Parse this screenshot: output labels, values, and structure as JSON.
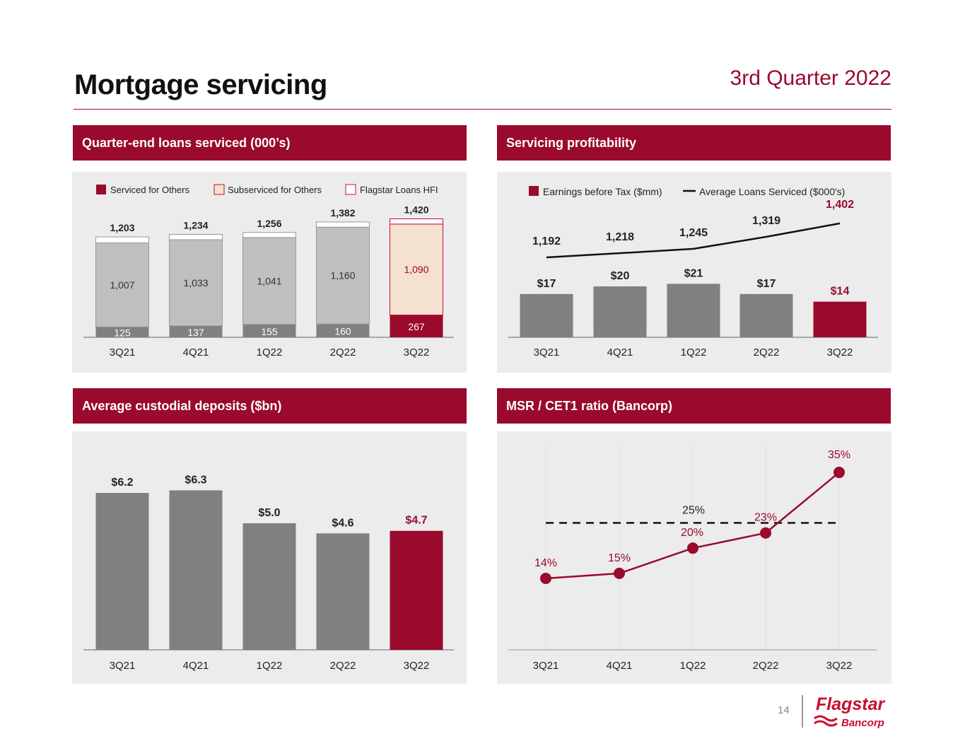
{
  "header": {
    "title": "Mortgage servicing",
    "period": "3rd Quarter 2022"
  },
  "footer": {
    "page": "14",
    "logo_text": "Flagstar Bancorp"
  },
  "colors": {
    "accent": "#9a0a2c",
    "dark_gray": "#808080",
    "light_gray": "#bfbfbf",
    "peach": "#f5e1cf"
  },
  "chart_data": [
    {
      "type": "bar",
      "stacked": true,
      "title": "Quarter-end loans serviced (000’s)",
      "categories": [
        "3Q21",
        "4Q21",
        "1Q22",
        "2Q22",
        "3Q22"
      ],
      "legend": [
        "Serviced for Others",
        "Subserviced for Others",
        "Flagstar Loans HFI"
      ],
      "legend_placement": "top",
      "series": [
        {
          "name": "Serviced for Others",
          "values": [
            125,
            137,
            155,
            160,
            267
          ]
        },
        {
          "name": "Subserviced for Others",
          "values": [
            1007,
            1033,
            1041,
            1160,
            1090
          ]
        },
        {
          "name": "Flagstar Loans HFI",
          "values": [
            71,
            64,
            60,
            62,
            63
          ]
        }
      ],
      "totals": [
        1203,
        1234,
        1256,
        1382,
        1420
      ],
      "total_labels": [
        "1,203",
        "1,234",
        "1,256",
        "1,382",
        "1,420"
      ],
      "seg_labels": [
        [
          "125",
          "137",
          "155",
          "160",
          "267"
        ],
        [
          "1,007",
          "1,033",
          "1,041",
          "1,160",
          "1,090"
        ]
      ]
    },
    {
      "type": "bar+line",
      "title": "Servicing profitability",
      "categories": [
        "3Q21",
        "4Q21",
        "1Q22",
        "2Q22",
        "3Q22"
      ],
      "legend_placement": "top",
      "series": [
        {
          "name": "Earnings before Tax ($mm)",
          "type": "bar",
          "values": [
            17,
            20,
            21,
            17,
            14
          ],
          "labels": [
            "$17",
            "$20",
            "$21",
            "$17",
            "$14"
          ]
        },
        {
          "name": "Average Loans Serviced ($000's)",
          "type": "line",
          "values": [
            1192,
            1218,
            1245,
            1319,
            1402
          ],
          "labels": [
            "1,192",
            "1,218",
            "1,245",
            "1,319",
            "1,402"
          ]
        }
      ]
    },
    {
      "type": "bar",
      "title": "Average custodial deposits ($bn)",
      "categories": [
        "3Q21",
        "4Q21",
        "1Q22",
        "2Q22",
        "3Q22"
      ],
      "values": [
        6.2,
        6.3,
        5.0,
        4.6,
        4.7
      ],
      "labels": [
        "$6.2",
        "$6.3",
        "$5.0",
        "$4.6",
        "$4.7"
      ]
    },
    {
      "type": "line",
      "title": "MSR / CET1 ratio (Bancorp)",
      "categories": [
        "3Q21",
        "4Q21",
        "1Q22",
        "2Q22",
        "3Q22"
      ],
      "values": [
        14,
        15,
        20,
        23,
        35
      ],
      "labels": [
        "14%",
        "15%",
        "20%",
        "23%",
        "35%"
      ],
      "reference": {
        "value": 25,
        "label": "25%",
        "style": "dashed"
      },
      "grid": "vertical"
    }
  ]
}
